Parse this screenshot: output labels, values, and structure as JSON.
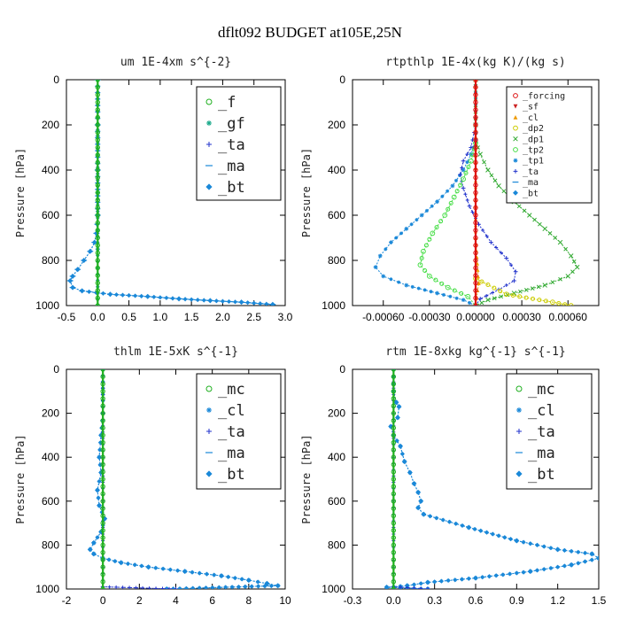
{
  "figure": {
    "title": "dflt092  BUDGET at105E,25N"
  },
  "colors": {
    "f": "#1fb01f",
    "gf": "#19a98a",
    "ta": "#2233cc",
    "ma": "#1a88d8",
    "bt": "#1a88d8",
    "forcing": "#dd1111",
    "sf": "#cc2222",
    "cl_small": "#ee9900",
    "dp2": "#cccc00",
    "dp1": "#33aa33",
    "tp2": "#44dd44",
    "tp1": "#1a88d8",
    "mc": "#1fb01f",
    "cl": "#1a88d8"
  },
  "chart_data": [
    {
      "type": "line",
      "title": "um  1E-4xm s^{-2}",
      "ylabel": "Pressure [hPa]",
      "xlim": [
        -0.5,
        3.0
      ],
      "ylim": [
        1000,
        0
      ],
      "xticks": [
        -0.5,
        0.0,
        0.5,
        1.0,
        1.5,
        2.0,
        2.5,
        3.0
      ],
      "xtick_labels": [
        "-0.5",
        "0.0",
        "0.5",
        "1.0",
        "1.5",
        "2.0",
        "2.5",
        "3.0"
      ],
      "yticks": [
        0,
        200,
        400,
        600,
        800,
        1000
      ],
      "ytick_labels": [
        "0",
        "200",
        "400",
        "600",
        "800",
        "1000"
      ],
      "legend": {
        "position": "top-right",
        "size": "large",
        "entries": [
          {
            "key": "f",
            "label": "_f",
            "marker": "circle"
          },
          {
            "key": "gf",
            "label": "_gf",
            "marker": "star"
          },
          {
            "key": "ta",
            "label": "_ta",
            "marker": "plus"
          },
          {
            "key": "ma",
            "label": "_ma",
            "marker": "dash"
          },
          {
            "key": "bt",
            "label": "_bt",
            "marker": "diamond"
          }
        ]
      },
      "series": [
        {
          "key": "ma",
          "x": [
            0.0,
            0.0,
            0.0,
            0.0,
            -0.02,
            -0.05,
            -0.12,
            -0.22,
            -0.32,
            -0.4,
            -0.44,
            -0.4,
            -0.25,
            0.2,
            0.8,
            1.3,
            1.8,
            2.3,
            2.8
          ],
          "y": [
            0,
            200,
            400,
            600,
            680,
            720,
            760,
            800,
            840,
            870,
            890,
            920,
            935,
            950,
            960,
            970,
            978,
            985,
            995
          ]
        },
        {
          "key": "bt",
          "x": [
            0.0,
            0.0,
            0.0,
            0.0,
            -0.02,
            -0.05,
            -0.12,
            -0.22,
            -0.32,
            -0.4,
            -0.44,
            -0.4,
            -0.25,
            0.2,
            0.8,
            1.3,
            1.8,
            2.3,
            2.8
          ],
          "y": [
            0,
            200,
            400,
            600,
            680,
            720,
            760,
            800,
            840,
            870,
            890,
            920,
            935,
            950,
            960,
            970,
            978,
            985,
            995
          ]
        },
        {
          "key": "ta",
          "x": [
            0.0,
            0.0,
            0.0,
            0.0,
            0.0
          ],
          "y": [
            0,
            250,
            500,
            750,
            1000
          ]
        },
        {
          "key": "gf",
          "x": [
            0.0,
            0.0,
            0.0,
            0.0,
            0.0
          ],
          "y": [
            0,
            250,
            500,
            750,
            1000
          ]
        },
        {
          "key": "f",
          "x": [
            0.0,
            0.0,
            0.0,
            0.0,
            0.0,
            0.0,
            0.0,
            0.0,
            0.0,
            0.0,
            0.0
          ],
          "y": [
            0,
            100,
            200,
            300,
            400,
            500,
            600,
            700,
            800,
            900,
            1000
          ]
        }
      ]
    },
    {
      "type": "line",
      "title": "rtpthlp  1E-4x(kg K)/(kg s)",
      "ylabel": "Pressure [hPa]",
      "xlim": [
        -0.0008,
        0.0008
      ],
      "ylim": [
        1000,
        0
      ],
      "xticks": [
        -0.0006,
        -0.0003,
        0.0,
        0.0003,
        0.0006
      ],
      "xtick_labels": [
        "-0.00060",
        "-0.00030",
        "0.00000",
        "0.00030",
        "0.00060"
      ],
      "yticks": [
        0,
        200,
        400,
        600,
        800,
        1000
      ],
      "ytick_labels": [
        "0",
        "200",
        "400",
        "600",
        "800",
        "1000"
      ],
      "legend": {
        "position": "top-right",
        "size": "small",
        "entries": [
          {
            "key": "forcing",
            "label": "_forcing",
            "marker": "circle"
          },
          {
            "key": "sf",
            "label": "_sf",
            "marker": "tri-down"
          },
          {
            "key": "cl_small",
            "label": "_cl",
            "marker": "tri-up"
          },
          {
            "key": "dp2",
            "label": "_dp2",
            "marker": "circle"
          },
          {
            "key": "dp1",
            "label": "_dp1",
            "marker": "x"
          },
          {
            "key": "tp2",
            "label": "_tp2",
            "marker": "circle"
          },
          {
            "key": "tp1",
            "label": "_tp1",
            "marker": "star"
          },
          {
            "key": "ta",
            "label": "_ta",
            "marker": "plus"
          },
          {
            "key": "ma",
            "label": "_ma",
            "marker": "dash"
          },
          {
            "key": "bt",
            "label": "_bt",
            "marker": "diamond"
          }
        ]
      },
      "series": [
        {
          "key": "dp1",
          "x": [
            0.0,
            0.0,
            0.0,
            3e-05,
            8e-05,
            0.00015,
            0.00025,
            0.00035,
            0.00045,
            0.00055,
            0.00062,
            0.00066,
            0.0006,
            0.00045,
            0.00025,
            8e-05,
            0.0
          ],
          "y": [
            0,
            200,
            270,
            330,
            400,
            470,
            540,
            600,
            660,
            720,
            780,
            830,
            870,
            910,
            945,
            975,
            1000
          ]
        },
        {
          "key": "tp1",
          "x": [
            0.0,
            0.0,
            0.0,
            -3e-05,
            -8e-05,
            -0.00015,
            -0.00025,
            -0.00035,
            -0.00045,
            -0.00055,
            -0.00062,
            -0.00065,
            -0.0006,
            -0.00045,
            -0.00025,
            -8e-05,
            0.0
          ],
          "y": [
            0,
            200,
            270,
            330,
            400,
            470,
            540,
            600,
            660,
            720,
            780,
            830,
            870,
            910,
            945,
            975,
            1000
          ]
        },
        {
          "key": "ta",
          "x": [
            0.0,
            -3e-05,
            -8e-05,
            -0.0001,
            -8e-05,
            -4e-05,
            2e-05,
            0.0001,
            0.0002,
            0.00026,
            0.00025,
            0.00015,
            3e-05,
            0.0
          ],
          "y": [
            200,
            300,
            360,
            420,
            480,
            560,
            640,
            720,
            790,
            850,
            890,
            930,
            970,
            1000
          ]
        },
        {
          "key": "tp2",
          "x": [
            0.0,
            -3e-05,
            -8e-05,
            -0.00014,
            -0.0002,
            -0.00028,
            -0.00034,
            -0.00036,
            -0.0003,
            -0.00018,
            -5e-05,
            0.0
          ],
          "y": [
            280,
            360,
            440,
            520,
            600,
            680,
            760,
            820,
            870,
            920,
            960,
            1000
          ]
        },
        {
          "key": "dp2",
          "x": [
            0.0,
            0.0002,
            0.0005,
            0.00062
          ],
          "y": [
            880,
            950,
            985,
            1000
          ]
        },
        {
          "key": "cl_small",
          "x": [
            0.0,
            0.0,
            2e-05,
            0.0
          ],
          "y": [
            0,
            700,
            900,
            1000
          ]
        },
        {
          "key": "forcing",
          "x": [
            0.0,
            0.0,
            0.0,
            0.0,
            0.0,
            0.0,
            0.0,
            0.0,
            0.0,
            0.0,
            0.0
          ],
          "y": [
            0,
            100,
            200,
            300,
            400,
            500,
            600,
            700,
            800,
            900,
            1000
          ]
        }
      ]
    },
    {
      "type": "line",
      "title": "thlm  1E-5xK s^{-1}",
      "ylabel": "Pressure [hPa]",
      "xlim": [
        -2,
        10
      ],
      "ylim": [
        1000,
        0
      ],
      "xticks": [
        -2,
        0,
        2,
        4,
        6,
        8,
        10
      ],
      "xtick_labels": [
        "-2",
        "0",
        "2",
        "4",
        "6",
        "8",
        "10"
      ],
      "yticks": [
        0,
        200,
        400,
        600,
        800,
        1000
      ],
      "ytick_labels": [
        "0",
        "200",
        "400",
        "600",
        "800",
        "1000"
      ],
      "legend": {
        "position": "top-right",
        "size": "large",
        "entries": [
          {
            "key": "mc",
            "label": "_mc",
            "marker": "circle"
          },
          {
            "key": "cl",
            "label": "_cl",
            "marker": "star"
          },
          {
            "key": "ta",
            "label": "_ta",
            "marker": "plus"
          },
          {
            "key": "ma",
            "label": "_ma",
            "marker": "dash"
          },
          {
            "key": "bt",
            "label": "_bt",
            "marker": "diamond"
          }
        ]
      },
      "series": [
        {
          "key": "cl",
          "x": [
            0.0,
            0.0,
            -0.1,
            -0.2,
            -0.1,
            -0.3,
            -0.2,
            0.1,
            -0.1,
            -0.5,
            -0.7,
            -0.5,
            0.0,
            1.0,
            2.5,
            4.5,
            6.5,
            8.0,
            9.0,
            9.6,
            3.5
          ],
          "y": [
            0,
            200,
            300,
            400,
            470,
            550,
            620,
            680,
            740,
            790,
            820,
            840,
            860,
            880,
            900,
            920,
            940,
            960,
            975,
            985,
            1000
          ]
        },
        {
          "key": "bt",
          "x": [
            0.0,
            0.0,
            -0.1,
            -0.2,
            -0.1,
            -0.3,
            -0.2,
            0.1,
            -0.1,
            -0.5,
            -0.7,
            -0.5,
            0.0,
            1.0,
            2.5,
            4.5,
            6.5,
            8.0,
            9.0,
            9.6,
            3.5
          ],
          "y": [
            0,
            200,
            300,
            400,
            470,
            550,
            620,
            680,
            740,
            790,
            820,
            840,
            860,
            880,
            900,
            920,
            940,
            960,
            975,
            985,
            1000
          ]
        },
        {
          "key": "ta",
          "x": [
            0.0,
            0.0,
            0.0,
            4.0
          ],
          "y": [
            0,
            600,
            990,
            1000
          ]
        },
        {
          "key": "mc",
          "x": [
            0.0,
            0.0,
            0.0,
            0.0,
            0.0,
            0.0,
            0.0,
            0.0,
            0.0,
            0.0,
            0.0
          ],
          "y": [
            0,
            100,
            200,
            300,
            400,
            500,
            600,
            700,
            800,
            900,
            1000
          ]
        }
      ]
    },
    {
      "type": "line",
      "title": "rtm  1E-8xkg kg^{-1} s^{-1}",
      "ylabel": "Pressure [hPa]",
      "xlim": [
        -0.3,
        1.5
      ],
      "ylim": [
        1000,
        0
      ],
      "xticks": [
        -0.3,
        0.0,
        0.3,
        0.6,
        0.9,
        1.2,
        1.5
      ],
      "xtick_labels": [
        "-0.3",
        "0.0",
        "0.3",
        "0.6",
        "0.9",
        "1.2",
        "1.5"
      ],
      "yticks": [
        0,
        200,
        400,
        600,
        800,
        1000
      ],
      "ytick_labels": [
        "0",
        "200",
        "400",
        "600",
        "800",
        "1000"
      ],
      "legend": {
        "position": "top-right",
        "size": "large",
        "entries": [
          {
            "key": "mc",
            "label": "_mc",
            "marker": "circle"
          },
          {
            "key": "cl",
            "label": "_cl",
            "marker": "star"
          },
          {
            "key": "ta",
            "label": "_ta",
            "marker": "plus"
          },
          {
            "key": "ma",
            "label": "_ma",
            "marker": "dash"
          },
          {
            "key": "bt",
            "label": "_bt",
            "marker": "diamond"
          }
        ]
      },
      "series": [
        {
          "key": "cl",
          "x": [
            0.0,
            0.0,
            0.02,
            0.04,
            0.03,
            -0.02,
            0.0,
            0.05,
            0.08,
            0.12,
            0.15,
            0.18,
            0.2,
            0.18,
            0.22,
            0.55,
            0.9,
            1.2,
            1.45,
            1.5,
            1.3,
            1.0,
            0.6,
            0.25,
            0.1,
            -0.05,
            0.25
          ],
          "y": [
            0,
            100,
            150,
            170,
            220,
            260,
            300,
            350,
            420,
            470,
            520,
            560,
            600,
            630,
            660,
            720,
            780,
            820,
            840,
            860,
            890,
            920,
            950,
            970,
            985,
            992,
            1000
          ]
        },
        {
          "key": "bt",
          "x": [
            0.0,
            0.0,
            0.02,
            0.04,
            0.03,
            -0.02,
            0.0,
            0.05,
            0.08,
            0.12,
            0.15,
            0.18,
            0.2,
            0.18,
            0.22,
            0.55,
            0.9,
            1.2,
            1.45,
            1.5,
            1.3,
            1.0,
            0.6,
            0.25,
            0.1,
            -0.05,
            0.25
          ],
          "y": [
            0,
            100,
            150,
            170,
            220,
            260,
            300,
            350,
            420,
            470,
            520,
            560,
            600,
            630,
            660,
            720,
            780,
            820,
            840,
            860,
            890,
            920,
            950,
            970,
            985,
            992,
            1000
          ]
        },
        {
          "key": "ta",
          "x": [
            0.0,
            0.0,
            0.0,
            0.25
          ],
          "y": [
            0,
            600,
            990,
            1000
          ]
        },
        {
          "key": "mc",
          "x": [
            0.0,
            0.0,
            0.0,
            0.0,
            0.0,
            0.0,
            0.0,
            0.0,
            0.0,
            0.0,
            0.0
          ],
          "y": [
            0,
            100,
            200,
            300,
            400,
            500,
            600,
            700,
            800,
            900,
            1000
          ]
        }
      ]
    }
  ]
}
